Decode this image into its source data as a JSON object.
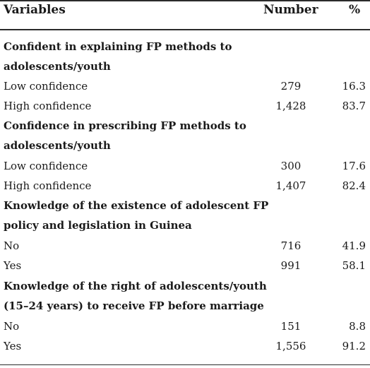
{
  "table": {
    "headers": {
      "variables": "Variables",
      "number": "Number",
      "percent": "%"
    },
    "groups": [
      {
        "title_line1": "Confident in explaining FP methods to",
        "title_line2": "adolescents/youth",
        "rows": [
          {
            "label": "Low confidence",
            "number": "279",
            "percent": "16.3"
          },
          {
            "label": "High confidence",
            "number": "1,428",
            "percent": "83.7"
          }
        ]
      },
      {
        "title_line1": "Confidence in prescribing FP methods to",
        "title_line2": "adolescents/youth",
        "rows": [
          {
            "label": "Low confidence",
            "number": "300",
            "percent": "17.6"
          },
          {
            "label": "High confidence",
            "number": "1,407",
            "percent": "82.4"
          }
        ]
      },
      {
        "title_line1": "Knowledge of the existence of adolescent FP",
        "title_line2": "policy and legislation in Guinea",
        "rows": [
          {
            "label": "No",
            "number": "716",
            "percent": "41.9"
          },
          {
            "label": "Yes",
            "number": "991",
            "percent": "58.1"
          }
        ]
      },
      {
        "title_line1": "Knowledge of the right of adolescents/youth",
        "title_line2": "(15–24 years) to receive FP before marriage",
        "rows": [
          {
            "label": "No",
            "number": "151",
            "percent": "8.8"
          },
          {
            "label": "Yes",
            "number": "1,556",
            "percent": "91.2"
          }
        ]
      }
    ]
  }
}
